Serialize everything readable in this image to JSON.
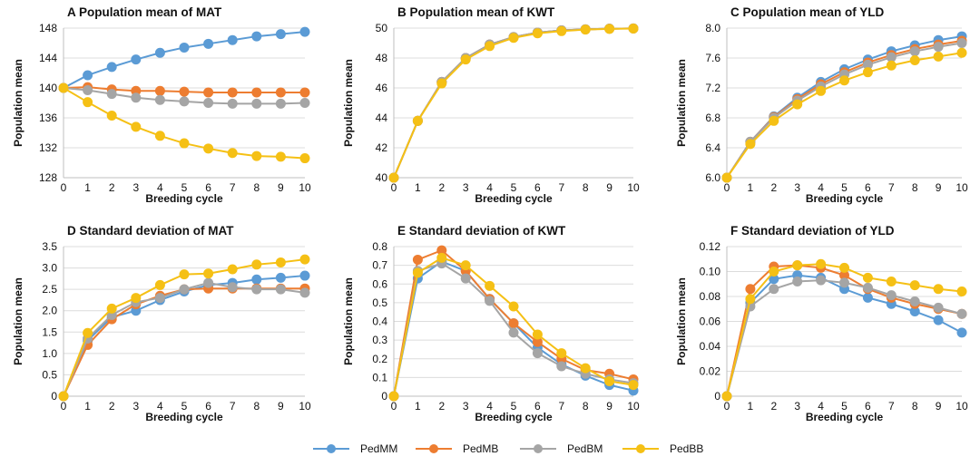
{
  "legend": [
    {
      "name": "PedMM",
      "color": "#5b9bd5"
    },
    {
      "name": "PedMB",
      "color": "#ed7d31"
    },
    {
      "name": "PedBM",
      "color": "#a5a5a5"
    },
    {
      "name": "PedBB",
      "color": "#f5c015"
    }
  ],
  "chart_data": [
    {
      "type": "line",
      "panel": "A",
      "title": "A  Population mean of MAT",
      "xlabel": "Breeding cycle",
      "ylabel": "Population mean",
      "x": [
        0,
        1,
        2,
        3,
        4,
        5,
        6,
        7,
        8,
        9,
        10
      ],
      "ylim": [
        128,
        148
      ],
      "yticks": [
        "128",
        "132",
        "136",
        "140",
        "144",
        "148"
      ],
      "series": [
        {
          "name": "PedMM",
          "values": [
            140,
            141.7,
            142.8,
            143.8,
            144.7,
            145.4,
            145.9,
            146.4,
            146.9,
            147.2,
            147.5
          ]
        },
        {
          "name": "PedMB",
          "values": [
            140,
            140.1,
            139.8,
            139.6,
            139.6,
            139.5,
            139.4,
            139.4,
            139.4,
            139.4,
            139.4
          ]
        },
        {
          "name": "PedBM",
          "values": [
            140,
            139.7,
            139.2,
            138.7,
            138.4,
            138.2,
            138.0,
            137.9,
            137.9,
            137.9,
            138.0
          ]
        },
        {
          "name": "PedBB",
          "values": [
            140,
            138.1,
            136.3,
            134.8,
            133.6,
            132.6,
            131.9,
            131.3,
            130.9,
            130.8,
            130.6
          ]
        }
      ]
    },
    {
      "type": "line",
      "panel": "B",
      "title": "B  Population mean of KWT",
      "xlabel": "Breeding cycle",
      "ylabel": "Population mean",
      "x": [
        0,
        1,
        2,
        3,
        4,
        5,
        6,
        7,
        8,
        9,
        10
      ],
      "ylim": [
        40,
        50
      ],
      "yticks": [
        "40",
        "42",
        "44",
        "46",
        "48",
        "50"
      ],
      "series": [
        {
          "name": "PedMM",
          "values": [
            40,
            43.8,
            46.4,
            48.0,
            48.9,
            49.4,
            49.7,
            49.85,
            49.92,
            49.96,
            49.98
          ]
        },
        {
          "name": "PedMB",
          "values": [
            40,
            43.8,
            46.4,
            48.0,
            48.9,
            49.4,
            49.7,
            49.85,
            49.92,
            49.96,
            49.98
          ]
        },
        {
          "name": "PedBM",
          "values": [
            40,
            43.8,
            46.4,
            48.0,
            48.9,
            49.4,
            49.7,
            49.85,
            49.92,
            49.96,
            49.98
          ]
        },
        {
          "name": "PedBB",
          "values": [
            40,
            43.8,
            46.3,
            47.9,
            48.8,
            49.35,
            49.65,
            49.8,
            49.9,
            49.95,
            49.97
          ]
        }
      ]
    },
    {
      "type": "line",
      "panel": "C",
      "title": "C  Population mean of YLD",
      "xlabel": "Breeding cycle",
      "ylabel": "Population mean",
      "x": [
        0,
        1,
        2,
        3,
        4,
        5,
        6,
        7,
        8,
        9,
        10
      ],
      "ylim": [
        6.0,
        8.0
      ],
      "yticks": [
        "6.0",
        "6.4",
        "6.8",
        "7.2",
        "7.6",
        "8.0"
      ],
      "series": [
        {
          "name": "PedMM",
          "values": [
            6.0,
            6.48,
            6.82,
            7.07,
            7.28,
            7.45,
            7.58,
            7.69,
            7.77,
            7.84,
            7.89
          ]
        },
        {
          "name": "PedMB",
          "values": [
            6.0,
            6.48,
            6.81,
            7.05,
            7.25,
            7.41,
            7.54,
            7.64,
            7.72,
            7.78,
            7.83
          ]
        },
        {
          "name": "PedBM",
          "values": [
            6.0,
            6.48,
            6.8,
            7.03,
            7.22,
            7.38,
            7.51,
            7.61,
            7.69,
            7.75,
            7.8
          ]
        },
        {
          "name": "PedBB",
          "values": [
            6.0,
            6.45,
            6.76,
            6.98,
            7.16,
            7.3,
            7.41,
            7.5,
            7.57,
            7.62,
            7.67
          ]
        }
      ]
    },
    {
      "type": "line",
      "panel": "D",
      "title": "D  Standard deviation of MAT",
      "xlabel": "Breeding cycle",
      "ylabel": "Population mean",
      "x": [
        0,
        1,
        2,
        3,
        4,
        5,
        6,
        7,
        8,
        9,
        10
      ],
      "ylim": [
        0,
        3.5
      ],
      "yticks": [
        "0",
        "0.5",
        "1.0",
        "1.5",
        "2.0",
        "2.5",
        "3.0",
        "3.5"
      ],
      "series": [
        {
          "name": "PedMM",
          "values": [
            0,
            1.3,
            1.85,
            2.0,
            2.25,
            2.45,
            2.6,
            2.65,
            2.73,
            2.77,
            2.82
          ]
        },
        {
          "name": "PedMB",
          "values": [
            0,
            1.2,
            1.8,
            2.15,
            2.35,
            2.5,
            2.52,
            2.52,
            2.52,
            2.52,
            2.52
          ]
        },
        {
          "name": "PedBM",
          "values": [
            0,
            1.35,
            1.9,
            2.2,
            2.3,
            2.5,
            2.65,
            2.55,
            2.5,
            2.5,
            2.42
          ]
        },
        {
          "name": "PedBB",
          "values": [
            0,
            1.48,
            2.05,
            2.3,
            2.6,
            2.85,
            2.87,
            2.97,
            3.08,
            3.13,
            3.2
          ]
        }
      ]
    },
    {
      "type": "line",
      "panel": "E",
      "title": "E  Standard deviation of KWT",
      "xlabel": "Breeding cycle",
      "ylabel": "Population mean",
      "x": [
        0,
        1,
        2,
        3,
        4,
        5,
        6,
        7,
        8,
        9,
        10
      ],
      "ylim": [
        0,
        0.8
      ],
      "yticks": [
        "0",
        "0.1",
        "0.2",
        "0.3",
        "0.4",
        "0.5",
        "0.6",
        "0.7",
        "0.8"
      ],
      "series": [
        {
          "name": "PedMM",
          "values": [
            0,
            0.63,
            0.72,
            0.67,
            0.52,
            0.39,
            0.26,
            0.17,
            0.11,
            0.06,
            0.03
          ]
        },
        {
          "name": "PedMB",
          "values": [
            0,
            0.73,
            0.78,
            0.67,
            0.52,
            0.39,
            0.29,
            0.2,
            0.14,
            0.12,
            0.09
          ]
        },
        {
          "name": "PedBM",
          "values": [
            0,
            0.67,
            0.71,
            0.63,
            0.51,
            0.34,
            0.23,
            0.16,
            0.12,
            0.09,
            0.07
          ]
        },
        {
          "name": "PedBB",
          "values": [
            0,
            0.66,
            0.74,
            0.7,
            0.59,
            0.48,
            0.33,
            0.23,
            0.15,
            0.08,
            0.06
          ]
        }
      ]
    },
    {
      "type": "line",
      "panel": "F",
      "title": "F  Standard deviation of YLD",
      "xlabel": "Breeding cycle",
      "ylabel": "Population mean",
      "x": [
        0,
        1,
        2,
        3,
        4,
        5,
        6,
        7,
        8,
        9,
        10
      ],
      "ylim": [
        0,
        0.12
      ],
      "yticks": [
        "0",
        "0.02",
        "0.04",
        "0.06",
        "0.08",
        "0.10",
        "0.12"
      ],
      "series": [
        {
          "name": "PedMM",
          "values": [
            0,
            0.075,
            0.094,
            0.097,
            0.095,
            0.086,
            0.079,
            0.074,
            0.068,
            0.061,
            0.051
          ]
        },
        {
          "name": "PedMB",
          "values": [
            0,
            0.086,
            0.104,
            0.105,
            0.103,
            0.097,
            0.086,
            0.079,
            0.074,
            0.07,
            0.066
          ]
        },
        {
          "name": "PedBM",
          "values": [
            0,
            0.072,
            0.086,
            0.092,
            0.093,
            0.091,
            0.087,
            0.081,
            0.076,
            0.071,
            0.066
          ]
        },
        {
          "name": "PedBB",
          "values": [
            0,
            0.078,
            0.1,
            0.105,
            0.106,
            0.103,
            0.095,
            0.092,
            0.089,
            0.086,
            0.084
          ]
        }
      ]
    }
  ]
}
